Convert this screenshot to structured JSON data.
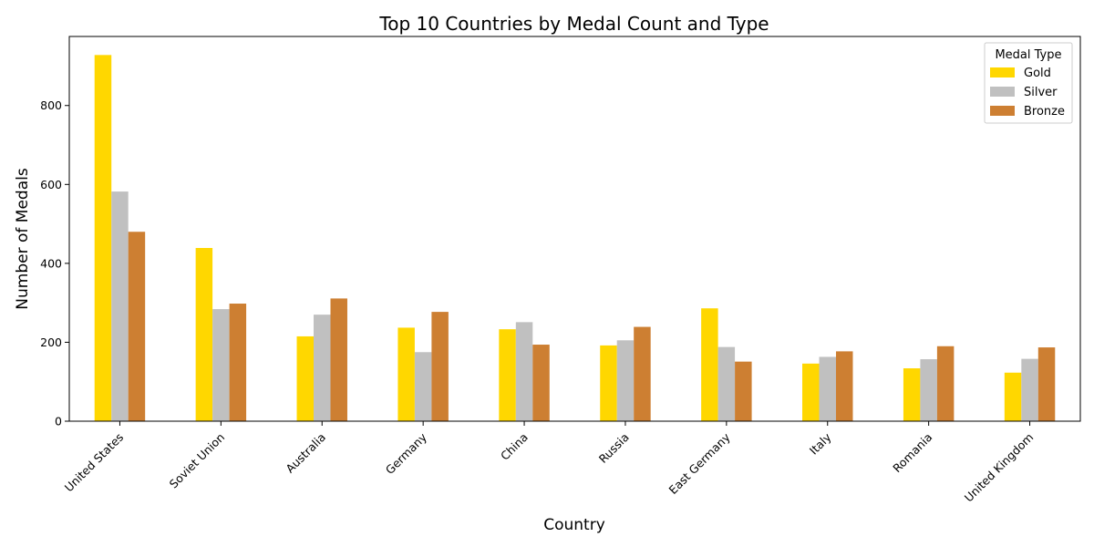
{
  "chart_data": {
    "type": "bar",
    "title": "Top 10 Countries by Medal Count and Type",
    "xlabel": "Country",
    "ylabel": "Number of Medals",
    "categories": [
      "United States",
      "Soviet Union",
      "Australia",
      "Germany",
      "China",
      "Russia",
      "East Germany",
      "Italy",
      "Romania",
      "United Kingdom"
    ],
    "series": [
      {
        "name": "Gold",
        "color": "#FFD700",
        "values": [
          928,
          439,
          215,
          237,
          233,
          192,
          286,
          146,
          134,
          123
        ]
      },
      {
        "name": "Silver",
        "color": "#C0C0C0",
        "values": [
          582,
          284,
          270,
          175,
          251,
          205,
          188,
          163,
          157,
          158
        ]
      },
      {
        "name": "Bronze",
        "color": "#CD7F32",
        "values": [
          480,
          298,
          311,
          277,
          194,
          239,
          151,
          177,
          190,
          187
        ]
      }
    ],
    "ylim": [
      0,
      975
    ],
    "yticks": [
      0,
      200,
      400,
      600,
      800
    ],
    "grid": false,
    "legend": {
      "title": "Medal Type",
      "position": "top-right"
    }
  }
}
